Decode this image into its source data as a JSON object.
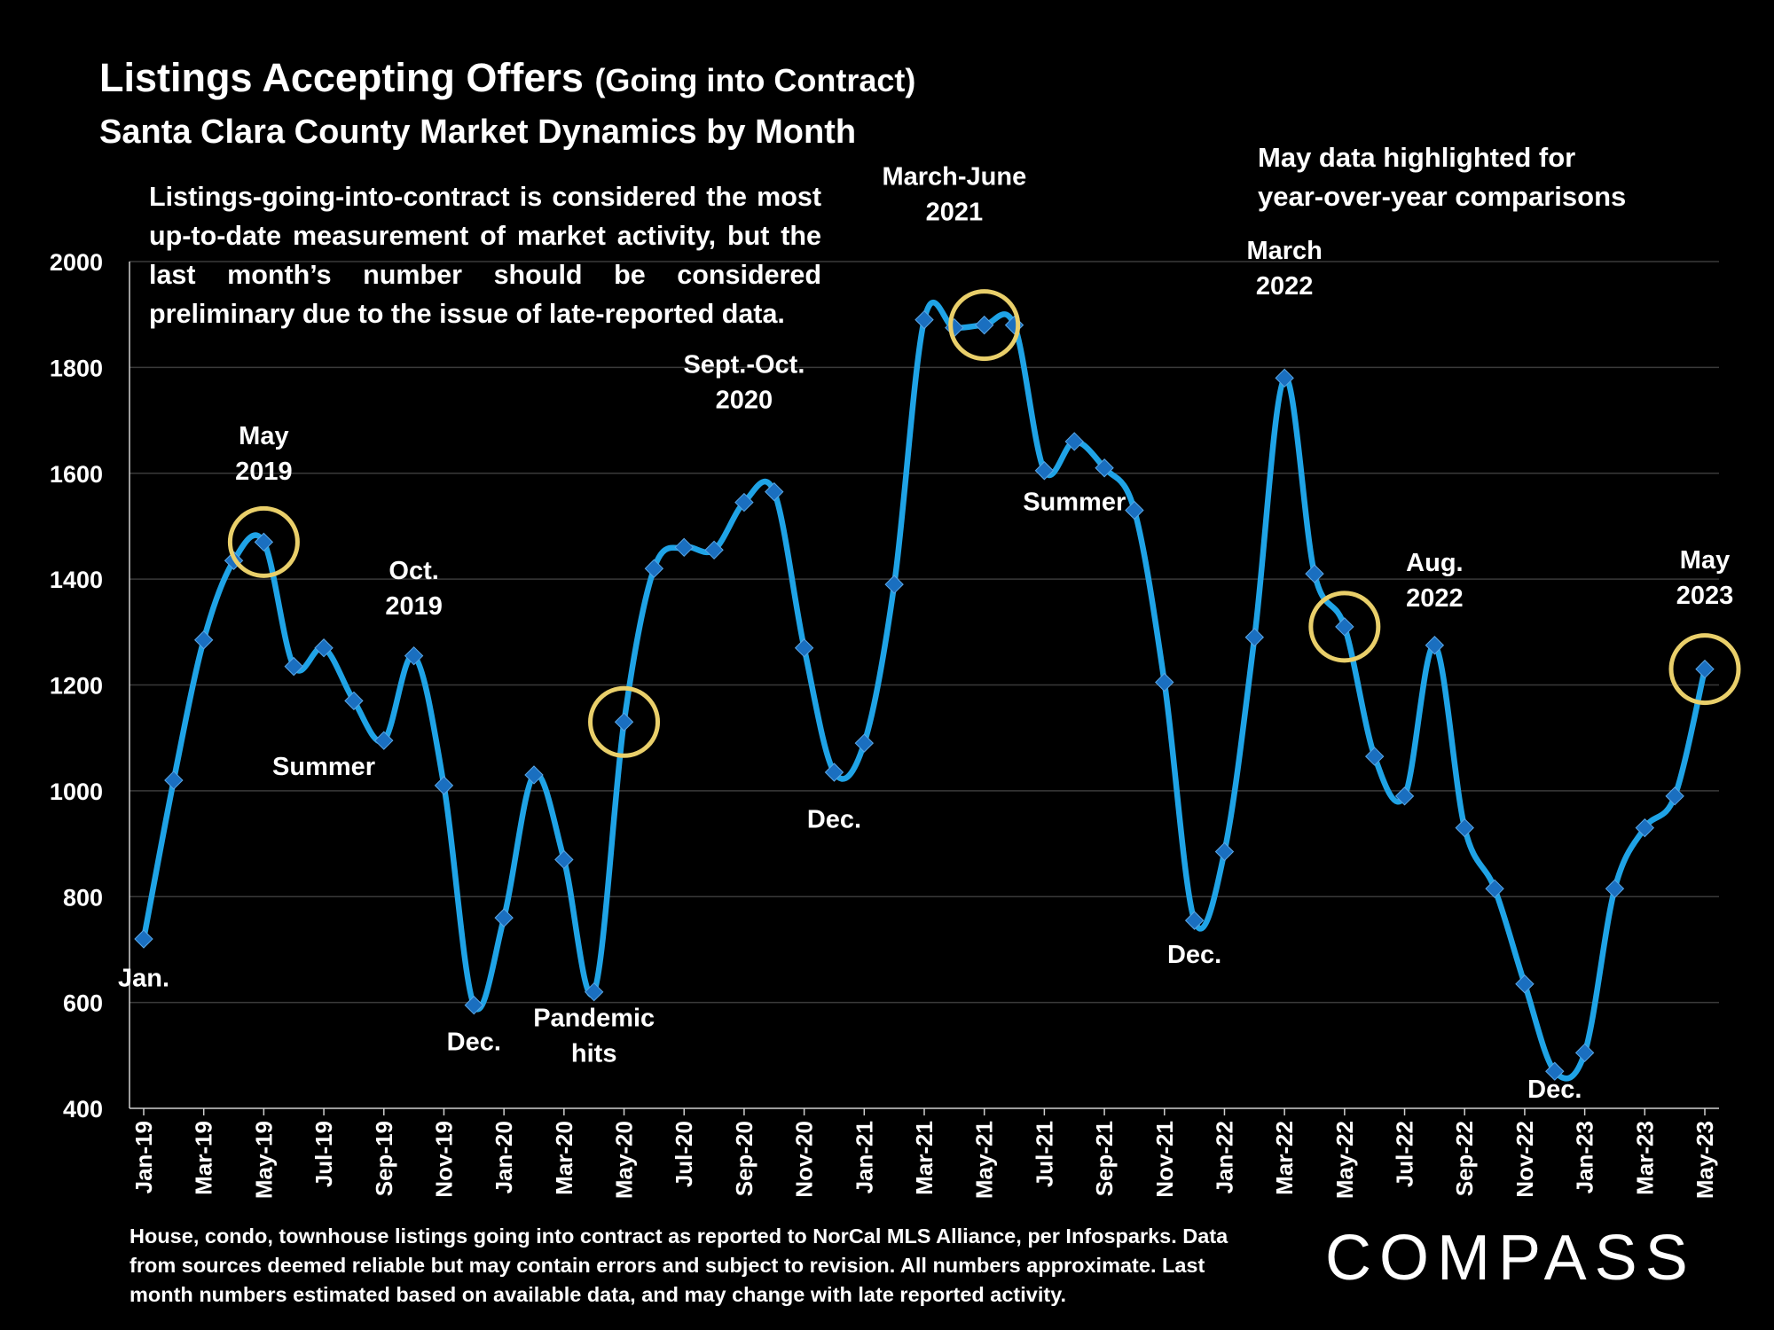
{
  "title": {
    "main": "Listings Accepting Offers",
    "paren": "(Going into Contract)"
  },
  "subtitle": "Santa Clara County Market Dynamics by Month",
  "note_left": "Listings-going-into-contract is considered the most up-to-date measurement of market activity, but the last month’s number should be considered preliminary due to the issue of late-reported data.",
  "note_right": "May data highlighted for year-over-year comparisons",
  "footnote": "House, condo, townhouse listings going into contract as reported to NorCal MLS Alliance, per Infosparks. Data from sources deemed reliable but may contain errors and subject to revision. All numbers approximate. Last month numbers estimated based on available data, and may change with late reported activity.",
  "logo": "COMPASS",
  "colors": {
    "line": "#1fa3e6",
    "marker": "#1a6fc0",
    "highlight": "#e9cf6a",
    "background": "#000000"
  },
  "chart_data": {
    "type": "line",
    "ylim": [
      400,
      2000
    ],
    "yticks": [
      400,
      600,
      800,
      1000,
      1200,
      1400,
      1600,
      1800,
      2000
    ],
    "grid": true,
    "legend": "none",
    "x": [
      "Jan-19",
      "Feb-19",
      "Mar-19",
      "Apr-19",
      "May-19",
      "Jun-19",
      "Jul-19",
      "Aug-19",
      "Sep-19",
      "Oct-19",
      "Nov-19",
      "Dec-19",
      "Jan-20",
      "Feb-20",
      "Mar-20",
      "Apr-20",
      "May-20",
      "Jun-20",
      "Jul-20",
      "Aug-20",
      "Sep-20",
      "Oct-20",
      "Nov-20",
      "Dec-20",
      "Jan-21",
      "Feb-21",
      "Mar-21",
      "Apr-21",
      "May-21",
      "Jun-21",
      "Jul-21",
      "Aug-21",
      "Sep-21",
      "Oct-21",
      "Nov-21",
      "Dec-21",
      "Jan-22",
      "Feb-22",
      "Mar-22",
      "Apr-22",
      "May-22",
      "Jun-22",
      "Jul-22",
      "Aug-22",
      "Sep-22",
      "Oct-22",
      "Nov-22",
      "Dec-22",
      "Jan-23",
      "Feb-23",
      "Mar-23",
      "Apr-23",
      "May-23"
    ],
    "x_tick_labels": [
      "Jan-19",
      "Mar-19",
      "May-19",
      "Jul-19",
      "Sep-19",
      "Nov-19",
      "Jan-20",
      "Mar-20",
      "May-20",
      "Jul-20",
      "Sep-20",
      "Nov-20",
      "Jan-21",
      "Mar-21",
      "May-21",
      "Jul-21",
      "Sep-21",
      "Nov-21",
      "Jan-22",
      "Mar-22",
      "May-22",
      "Jul-22",
      "Sep-22",
      "Nov-22",
      "Jan-23",
      "Mar-23",
      "May-23"
    ],
    "values": [
      720,
      1020,
      1285,
      1435,
      1470,
      1235,
      1270,
      1170,
      1095,
      1255,
      1010,
      595,
      760,
      1030,
      870,
      620,
      1130,
      1420,
      1460,
      1455,
      1545,
      1565,
      1270,
      1035,
      1090,
      1390,
      1890,
      1875,
      1880,
      1880,
      1605,
      1660,
      1610,
      1530,
      1205,
      755,
      885,
      1290,
      1780,
      1410,
      1310,
      1065,
      990,
      1275,
      930,
      815,
      635,
      470,
      505,
      815,
      930,
      990,
      1230
    ],
    "highlighted": [
      "May-19",
      "May-20",
      "May-21",
      "May-22",
      "May-23"
    ],
    "annotations": [
      {
        "text": [
          "Jan."
        ],
        "x": "Jan-19",
        "y": 630
      },
      {
        "text": [
          "May",
          "2019"
        ],
        "x": "May-19",
        "y": 1655
      },
      {
        "text": [
          "Summer"
        ],
        "x": "Jul-19",
        "y": 1030
      },
      {
        "text": [
          "Oct.",
          "2019"
        ],
        "x": "Oct-19",
        "y": 1400
      },
      {
        "text": [
          "Dec."
        ],
        "x": "Dec-19",
        "y": 510
      },
      {
        "text": [
          "Pandemic",
          "hits"
        ],
        "x": "Apr-20",
        "y": 555
      },
      {
        "text": [
          "Sept.-Oct.",
          "2020"
        ],
        "x": "Sep-20",
        "y": 1790
      },
      {
        "text": [
          "Dec."
        ],
        "x": "Dec-20",
        "y": 930
      },
      {
        "text": [
          "March-June",
          "2021"
        ],
        "x": "Apr-21",
        "y": 2145
      },
      {
        "text": [
          "Summer"
        ],
        "x": "Aug-21",
        "y": 1530
      },
      {
        "text": [
          "Dec."
        ],
        "x": "Dec-21",
        "y": 675
      },
      {
        "text": [
          "March",
          "2022"
        ],
        "x": "Mar-22",
        "y": 2005
      },
      {
        "text": [
          "Aug.",
          "2022"
        ],
        "x": "Aug-22",
        "y": 1415
      },
      {
        "text": [
          "Dec."
        ],
        "x": "Dec-22",
        "y": 420
      },
      {
        "text": [
          "May",
          "2023"
        ],
        "x": "May-23",
        "y": 1420
      }
    ]
  }
}
